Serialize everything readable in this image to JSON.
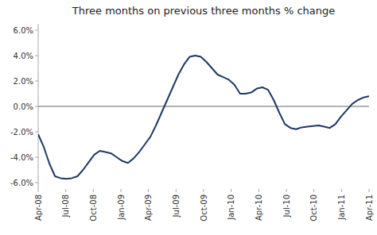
{
  "chart_data": {
    "type": "line",
    "title": "Three months on previous three months % change",
    "x": [
      0,
      0.6102,
      1.2203,
      1.8305,
      2.4407,
      3.0508,
      3.661,
      4.2712,
      4.8814,
      5.4915,
      6.1017,
      6.7119,
      7.322,
      7.9322,
      8.5424,
      9.1525,
      9.7627,
      10.3729,
      10.9831,
      11.5932,
      12.2034,
      12.8136,
      13.4237,
      14.0339,
      14.6441,
      15.2542,
      15.8644,
      16.4746,
      17.0847,
      17.6949,
      18.3051,
      18.9153,
      19.5254,
      20.1356,
      20.7458,
      21.3559,
      21.9661,
      22.5763,
      23.1864,
      23.7966,
      24.4068,
      25.0169,
      25.6271,
      26.2373,
      26.8475,
      27.4576,
      28.0678,
      28.678,
      29.2881,
      29.8983,
      30.5085,
      31.1186,
      31.7288,
      32.339,
      32.9492,
      33.5593,
      34.1695,
      34.7797,
      35.3898,
      36
    ],
    "values": [
      -2.2,
      -3.2,
      -4.5,
      -5.5,
      -5.65,
      -5.7,
      -5.65,
      -5.5,
      -5.0,
      -4.4,
      -3.8,
      -3.5,
      -3.6,
      -3.7,
      -4.0,
      -4.3,
      -4.45,
      -4.1,
      -3.6,
      -3.0,
      -2.4,
      -1.5,
      -0.5,
      0.5,
      1.5,
      2.5,
      3.3,
      3.9,
      4.0,
      3.9,
      3.5,
      3.0,
      2.5,
      2.3,
      2.1,
      1.7,
      1.0,
      1.0,
      1.1,
      1.4,
      1.5,
      1.3,
      0.5,
      -0.5,
      -1.4,
      -1.7,
      -1.8,
      -1.65,
      -1.6,
      -1.55,
      -1.5,
      -1.6,
      -1.7,
      -1.4,
      -0.8,
      -0.3,
      0.2,
      0.5,
      0.7,
      0.8
    ],
    "color": "#1f3864",
    "xlim": [
      0,
      36
    ],
    "xticks": [
      {
        "value": 0,
        "label": "Apr-08"
      },
      {
        "value": 3,
        "label": "Jul-08"
      },
      {
        "value": 6,
        "label": "Oct-08"
      },
      {
        "value": 9,
        "label": "Jan-09"
      },
      {
        "value": 12,
        "label": "Apr-09"
      },
      {
        "value": 15,
        "label": "Jul-09"
      },
      {
        "value": 18,
        "label": "Oct-09"
      },
      {
        "value": 21,
        "label": "Jan-10"
      },
      {
        "value": 24,
        "label": "Apr-10"
      },
      {
        "value": 27,
        "label": "Jul-10"
      },
      {
        "value": 30,
        "label": "Oct-10"
      },
      {
        "value": 33,
        "label": "Jan-11"
      },
      {
        "value": 36,
        "label": "Apr-11"
      }
    ],
    "ylim": [
      -6.5,
      6.5
    ],
    "yticks": [
      {
        "value": -6.0,
        "label": "-6.0%"
      },
      {
        "value": -4.0,
        "label": "-4.0%"
      },
      {
        "value": -2.0,
        "label": "-2.0%"
      },
      {
        "value": 0.0,
        "label": "0.0%"
      },
      {
        "value": 2.0,
        "label": "2.0%"
      },
      {
        "value": 4.0,
        "label": "4.0%"
      },
      {
        "value": 6.0,
        "label": "6.0%"
      }
    ],
    "hlines": [
      {
        "value": 0,
        "color": "#666666"
      }
    ],
    "grid": false
  }
}
